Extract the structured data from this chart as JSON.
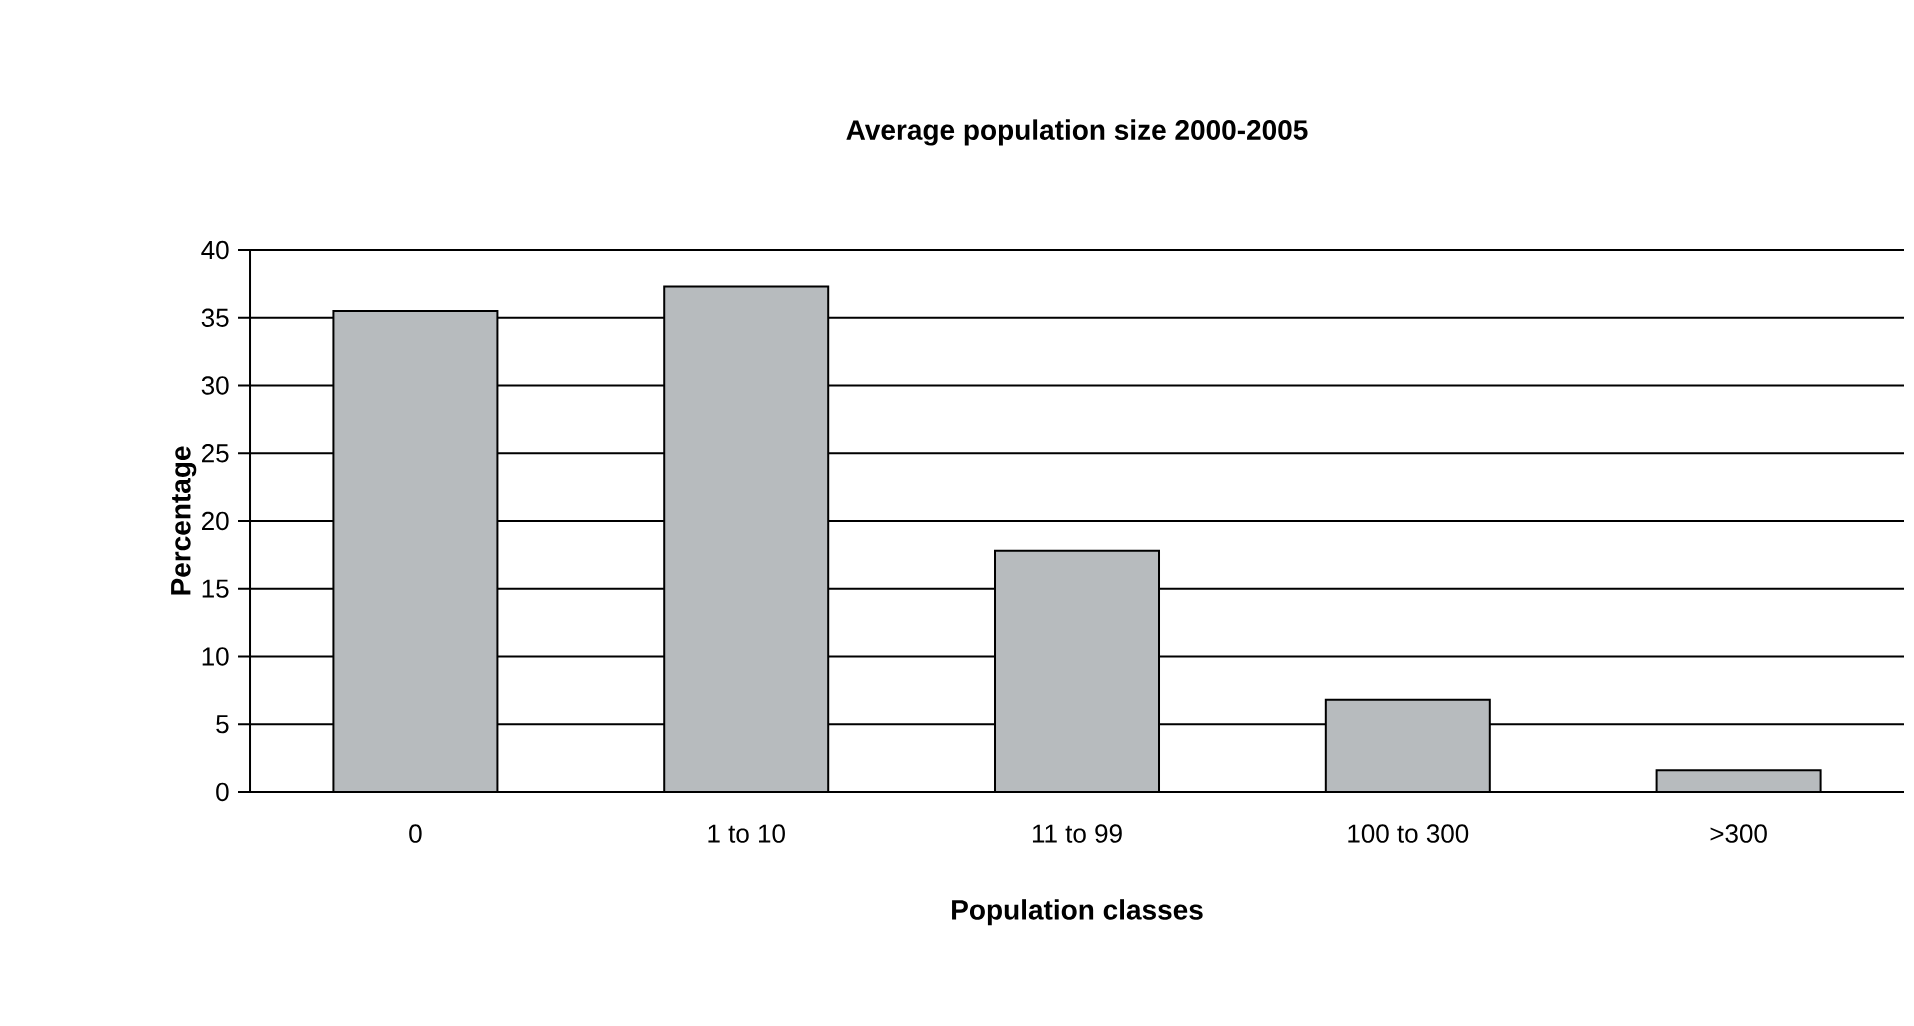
{
  "chart_data": {
    "type": "bar",
    "title": "Average population size 2000-2005",
    "xlabel": "Population classes",
    "ylabel": "Percentage",
    "categories": [
      "0",
      "1 to 10",
      "11 to 99",
      "100 to 300",
      ">300"
    ],
    "values": [
      35.5,
      37.3,
      17.8,
      6.8,
      1.6
    ],
    "color": "#b7bbbe",
    "ylim": [
      0,
      40
    ],
    "yticks": [
      0,
      5,
      10,
      15,
      20,
      25,
      30,
      35,
      40
    ],
    "grid": "y"
  }
}
